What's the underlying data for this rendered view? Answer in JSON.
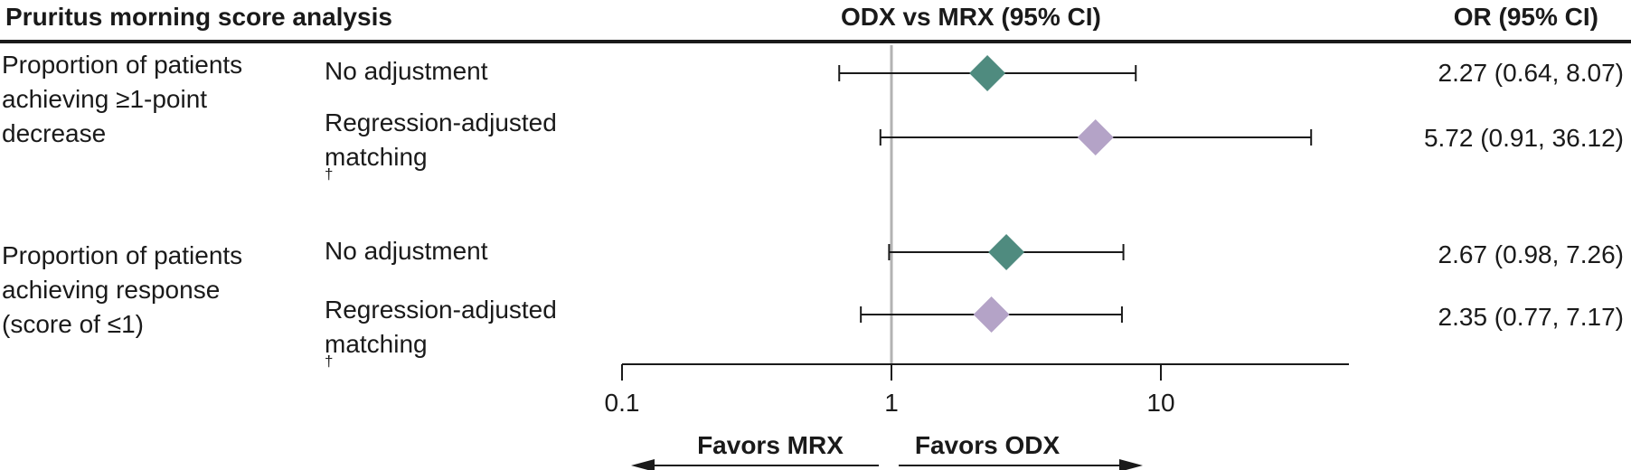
{
  "header": {
    "analysis": "Pruritus morning score analysis",
    "comparison": "ODX vs MRX (95% CI)",
    "or_column": "OR (95% CI)"
  },
  "groups": [
    {
      "lines": [
        "Proportion of patients",
        "achieving ≥1-point",
        "decrease"
      ]
    },
    {
      "lines": [
        "Proportion of patients",
        "achieving response",
        "(score of ≤1)"
      ]
    }
  ],
  "colors": {
    "no_adjustment": "#4f8b7f",
    "regression_adjusted": "#b4a3c7",
    "reference_line": "#b3b3b3",
    "ink": "#1a1a1a"
  },
  "chart_data": {
    "type": "forest",
    "x_scale": "log",
    "xlim": [
      0.1,
      40
    ],
    "x_ticks": [
      "0.1",
      "1",
      "10"
    ],
    "reference_value": 1,
    "favors_left": "Favors MRX",
    "favors_right": "Favors ODX",
    "rows": [
      {
        "adjustment_lines": [
          "No adjustment"
        ],
        "dagger": false,
        "or": 2.27,
        "lo": 0.64,
        "hi": 8.07,
        "label": "2.27 (0.64, 8.07)",
        "series": "no_adjustment"
      },
      {
        "adjustment_lines": [
          "Regression-adjusted",
          "matching"
        ],
        "dagger": true,
        "or": 5.72,
        "lo": 0.91,
        "hi": 36.12,
        "label": "5.72 (0.91, 36.12)",
        "series": "regression_adjusted"
      },
      {
        "adjustment_lines": [
          "No adjustment"
        ],
        "dagger": false,
        "or": 2.67,
        "lo": 0.98,
        "hi": 7.26,
        "label": "2.67 (0.98, 7.26)",
        "series": "no_adjustment"
      },
      {
        "adjustment_lines": [
          "Regression-adjusted",
          "matching"
        ],
        "dagger": true,
        "or": 2.35,
        "lo": 0.77,
        "hi": 7.17,
        "label": "2.35 (0.77, 7.17)",
        "series": "regression_adjusted"
      }
    ]
  }
}
